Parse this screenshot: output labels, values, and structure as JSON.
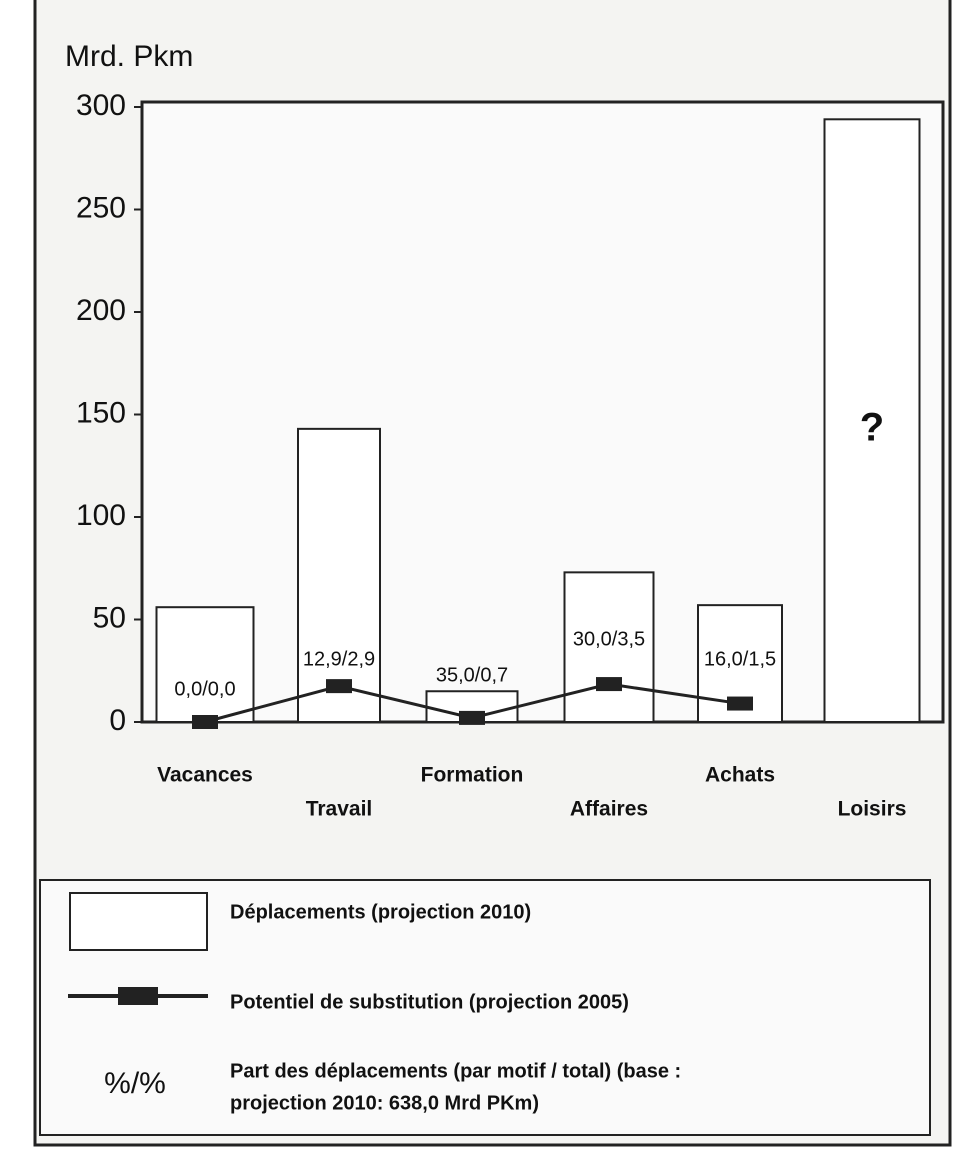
{
  "chart_data": {
    "type": "bar_line",
    "y_label": "Mrd. Pkm",
    "categories": [
      "Vacances",
      "Travail",
      "Formation",
      "Affaires",
      "Achats",
      "Loisirs"
    ],
    "series": [
      {
        "name": "Déplacements (projection 2010)",
        "kind": "bar",
        "color": "#ffffff",
        "values": [
          56,
          143,
          15,
          73,
          57,
          294
        ]
      },
      {
        "name": "Potentiel de substitution (projection 2005)",
        "kind": "line",
        "color": "#222222",
        "values": [
          0,
          17.5,
          2,
          18.5,
          9,
          null
        ]
      }
    ],
    "point_labels": [
      "0,0/0,0",
      "12,9/2,9",
      "35,0/0,7",
      "30,0/3,5",
      "16,0/1,5"
    ],
    "bar_note": "?",
    "legend_symbol": "%/%",
    "legend_note": [
      "Part des déplacements (par motif / total) (base :",
      "projection 2010: 638,0 Mrd PKm)"
    ],
    "ylim": [
      0,
      300
    ],
    "yticks": [
      0,
      50,
      100,
      150,
      200,
      250,
      300
    ]
  }
}
